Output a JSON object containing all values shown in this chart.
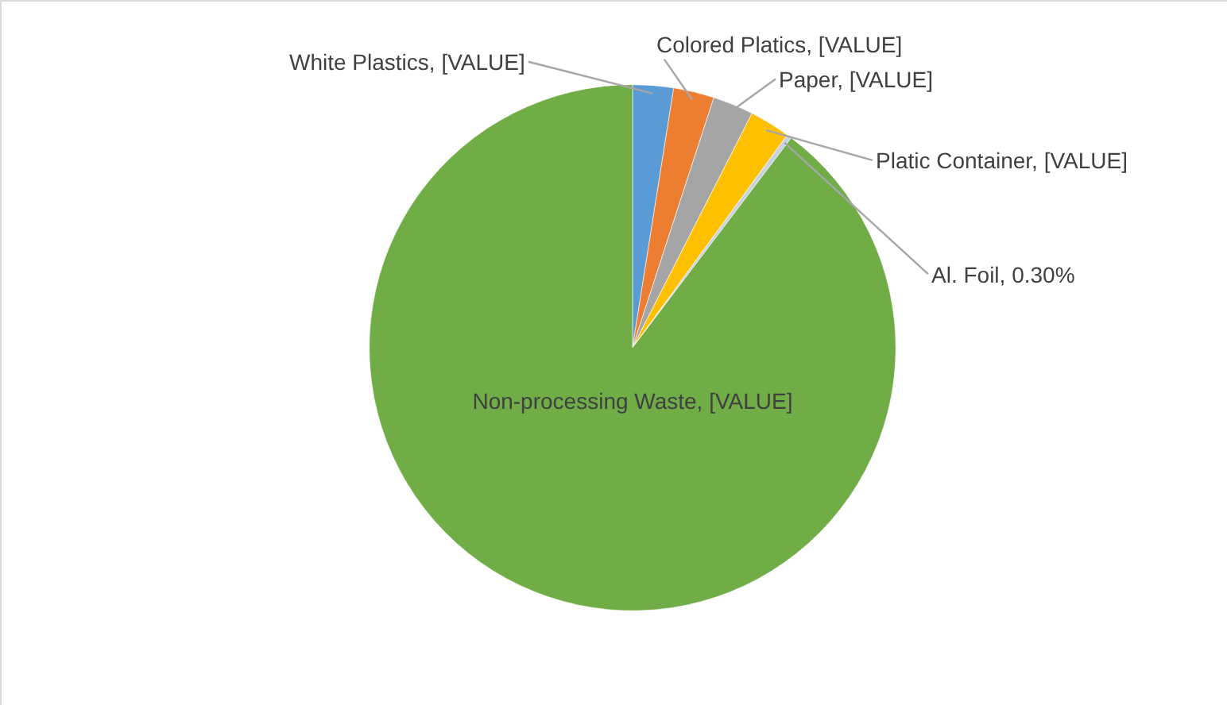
{
  "chart_data": {
    "type": "pie",
    "categories": [
      "White Plastics",
      "Colored Platics",
      "Paper",
      "Platic Container",
      "Al. Foil",
      "Non-processing Waste"
    ],
    "values": [
      2.5,
      2.5,
      2.5,
      2.5,
      0.3,
      89.7
    ],
    "value_labels": [
      "[VALUE]",
      "[VALUE]",
      "[VALUE]",
      "[VALUE]",
      "0.30%",
      "[VALUE]"
    ],
    "colors": [
      "#5b9bd5",
      "#ed7d31",
      "#a5a5a5",
      "#ffc000",
      "#c9d3de",
      "#70ad47"
    ],
    "legend": false
  }
}
